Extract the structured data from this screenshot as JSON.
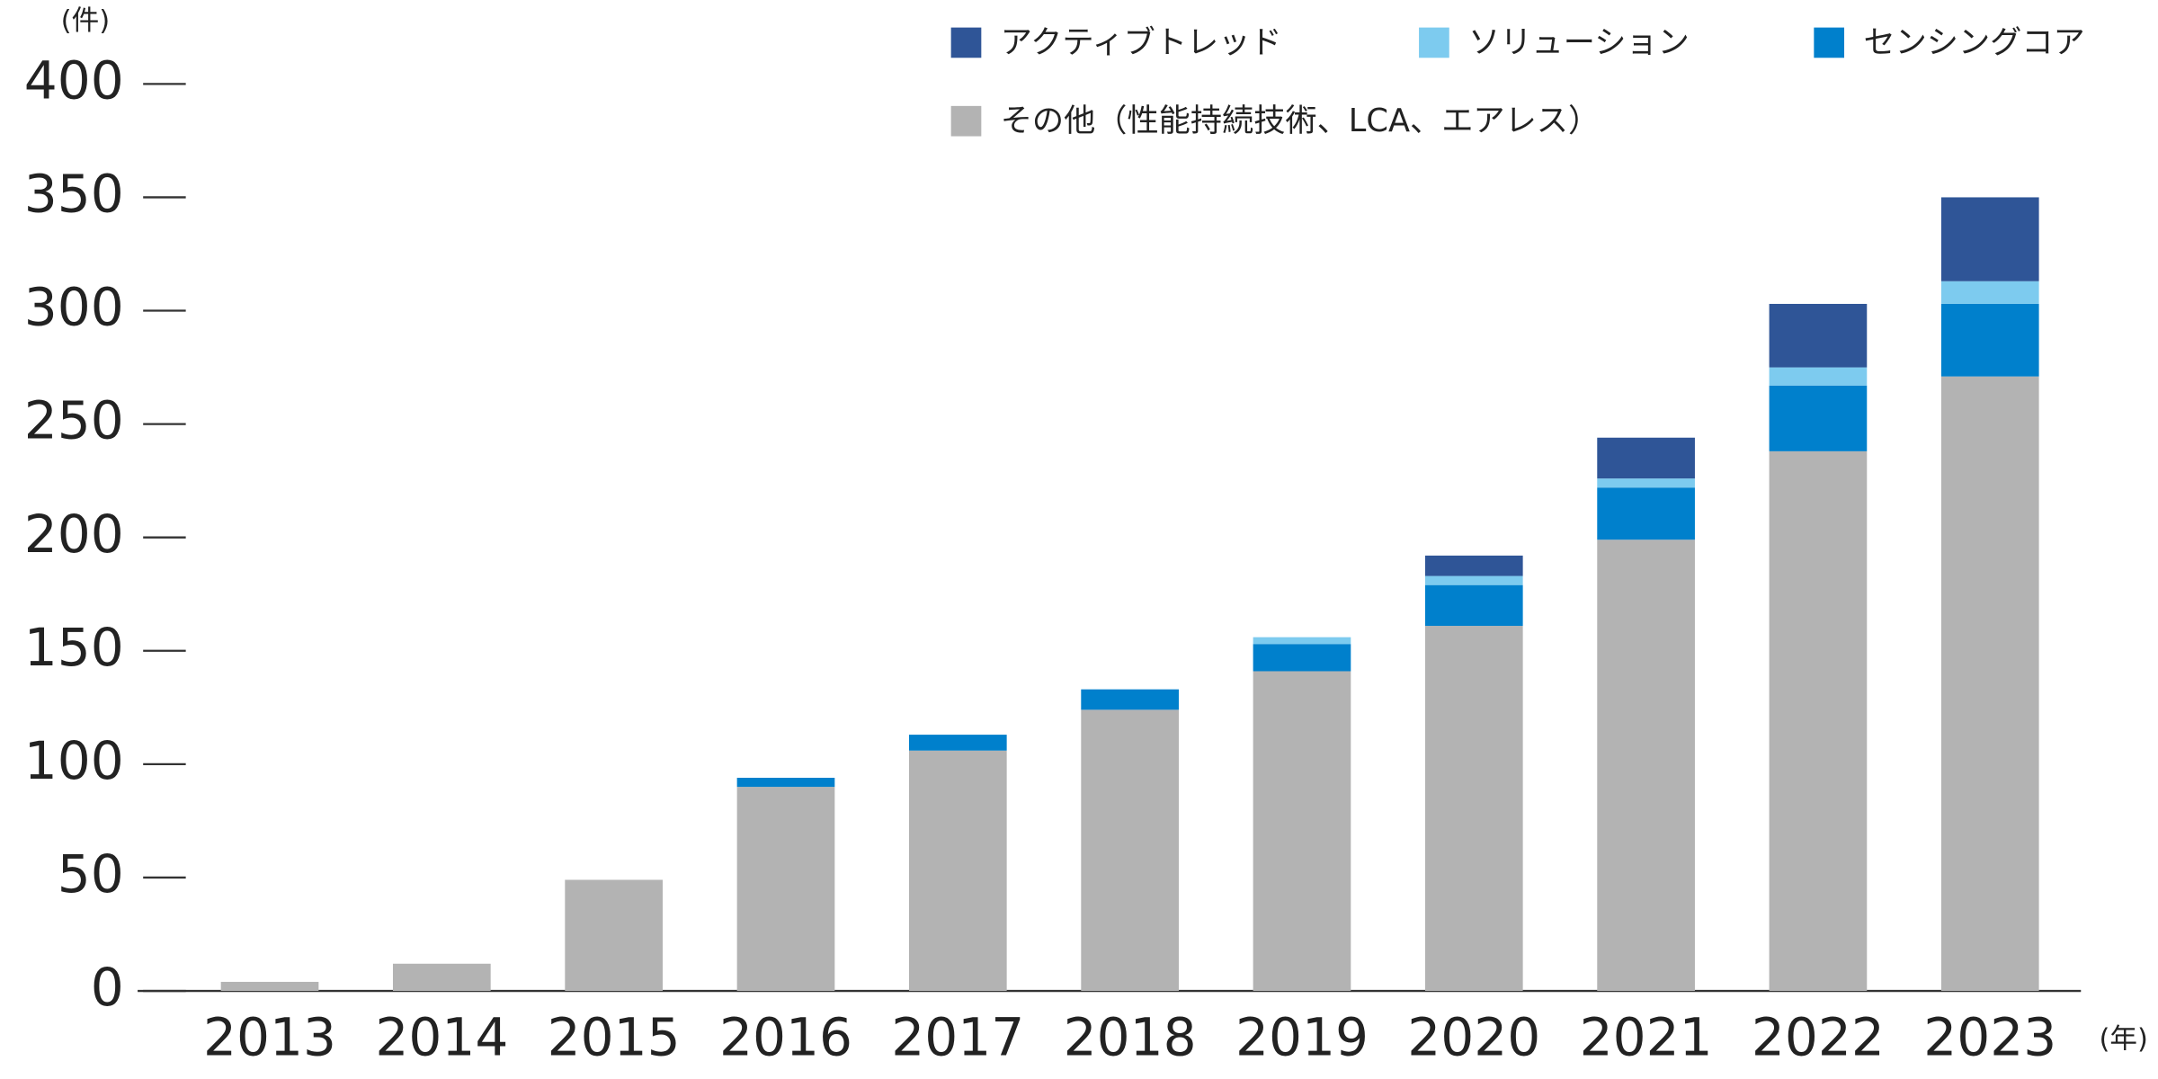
{
  "chart_data": {
    "type": "stacked_bar",
    "ylabel": "(件)",
    "xlabel": "(年)",
    "categories": [
      "2013",
      "2014",
      "2015",
      "2016",
      "2017",
      "2018",
      "2019",
      "2020",
      "2021",
      "2022",
      "2023"
    ],
    "series": [
      {
        "name": "その他（性能持続技術、LCA、エアレス）",
        "color": "#b3b3b3",
        "values": [
          4,
          12,
          49,
          90,
          106,
          124,
          141,
          161,
          199,
          238,
          271
        ]
      },
      {
        "name": "センシングコア",
        "color": "#0080cc",
        "values": [
          0,
          0,
          0,
          4,
          7,
          9,
          12,
          18,
          23,
          29,
          32
        ]
      },
      {
        "name": "ソリューション",
        "color": "#7dcbef",
        "values": [
          0,
          0,
          0,
          0,
          0,
          0,
          3,
          4,
          4,
          8,
          10
        ]
      },
      {
        "name": "アクティブトレッド",
        "color": "#2f5597",
        "values": [
          0,
          0,
          0,
          0,
          0,
          0,
          0,
          9,
          18,
          28,
          37
        ]
      }
    ],
    "ylim": [
      0,
      400
    ],
    "yticks": [
      0,
      50,
      100,
      150,
      200,
      250,
      300,
      350,
      400
    ]
  }
}
